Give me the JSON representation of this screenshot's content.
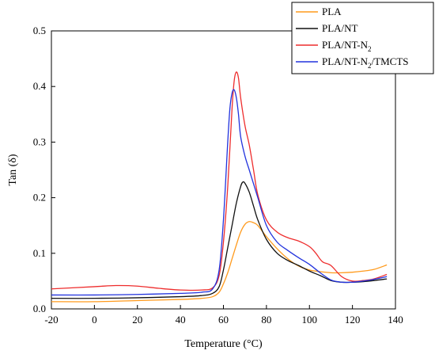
{
  "chart_data": {
    "type": "line",
    "xlabel": "Temperature (°C)",
    "ylabel": "Tan (δ)",
    "xlim": [
      -20,
      140
    ],
    "ylim": [
      0,
      0.5
    ],
    "x_ticks": [
      -20,
      0,
      20,
      40,
      60,
      80,
      100,
      120,
      140
    ],
    "y_ticks": [
      0.0,
      0.1,
      0.2,
      0.3,
      0.4,
      0.5
    ],
    "y_tick_labels": [
      "0.0",
      "0.1",
      "0.2",
      "0.3",
      "0.4",
      "0.5"
    ],
    "grid": false,
    "legend_position": "top-right",
    "series": [
      {
        "name": "PLA",
        "label_parts": [
          {
            "text": "PLA",
            "sub": false
          }
        ],
        "color": "#ff9a1c",
        "x": [
          -20,
          0,
          20,
          40,
          50,
          55,
          58,
          60,
          62,
          64,
          66,
          68,
          70,
          72,
          74,
          76,
          80,
          85,
          90,
          95,
          100,
          105,
          110,
          115,
          120,
          125,
          130,
          136
        ],
        "y": [
          0.013,
          0.013,
          0.015,
          0.017,
          0.019,
          0.022,
          0.03,
          0.045,
          0.065,
          0.09,
          0.115,
          0.138,
          0.152,
          0.157,
          0.155,
          0.15,
          0.13,
          0.108,
          0.09,
          0.077,
          0.07,
          0.067,
          0.065,
          0.065,
          0.066,
          0.068,
          0.071,
          0.079
        ]
      },
      {
        "name": "PLA/NT",
        "label_parts": [
          {
            "text": "PLA/NT",
            "sub": false
          }
        ],
        "color": "#111111",
        "x": [
          -20,
          0,
          20,
          40,
          50,
          55,
          58,
          60,
          62,
          64,
          66,
          68,
          69,
          70,
          72,
          74,
          76,
          80,
          85,
          90,
          95,
          100,
          105,
          110,
          115,
          120,
          125,
          130,
          136
        ],
        "y": [
          0.019,
          0.019,
          0.02,
          0.022,
          0.024,
          0.028,
          0.04,
          0.07,
          0.11,
          0.15,
          0.19,
          0.22,
          0.228,
          0.226,
          0.21,
          0.185,
          0.16,
          0.125,
          0.1,
          0.087,
          0.078,
          0.068,
          0.06,
          0.051,
          0.048,
          0.048,
          0.049,
          0.051,
          0.054
        ]
      },
      {
        "name": "PLA/NT-N2",
        "label_parts": [
          {
            "text": "PLA/NT-N",
            "sub": false
          },
          {
            "text": "2",
            "sub": true
          }
        ],
        "color": "#ee2d2d",
        "x": [
          -20,
          0,
          10,
          20,
          30,
          40,
          50,
          55,
          58,
          60,
          62,
          64,
          65,
          66,
          67,
          68,
          70,
          72,
          74,
          76,
          80,
          85,
          90,
          95,
          100,
          103,
          106,
          110,
          115,
          120,
          125,
          130,
          136
        ],
        "y": [
          0.036,
          0.04,
          0.042,
          0.041,
          0.037,
          0.034,
          0.034,
          0.038,
          0.06,
          0.12,
          0.22,
          0.36,
          0.41,
          0.426,
          0.415,
          0.38,
          0.33,
          0.295,
          0.25,
          0.205,
          0.16,
          0.138,
          0.128,
          0.122,
          0.112,
          0.1,
          0.085,
          0.078,
          0.058,
          0.05,
          0.051,
          0.054,
          0.062
        ]
      },
      {
        "name": "PLA/NT-N2/TMCTS",
        "label_parts": [
          {
            "text": "PLA/NT-N",
            "sub": false
          },
          {
            "text": "2",
            "sub": true
          },
          {
            "text": "/TMCTS",
            "sub": false
          }
        ],
        "color": "#2233dd",
        "x": [
          -20,
          0,
          20,
          40,
          50,
          55,
          58,
          60,
          62,
          63,
          64,
          65,
          66,
          67,
          68,
          70,
          72,
          74,
          76,
          80,
          85,
          90,
          95,
          100,
          105,
          110,
          115,
          120,
          125,
          130,
          136
        ],
        "y": [
          0.025,
          0.025,
          0.026,
          0.028,
          0.03,
          0.036,
          0.07,
          0.16,
          0.3,
          0.36,
          0.388,
          0.394,
          0.38,
          0.35,
          0.31,
          0.275,
          0.25,
          0.225,
          0.2,
          0.15,
          0.12,
          0.105,
          0.092,
          0.08,
          0.065,
          0.052,
          0.048,
          0.048,
          0.05,
          0.053,
          0.058
        ]
      }
    ]
  }
}
